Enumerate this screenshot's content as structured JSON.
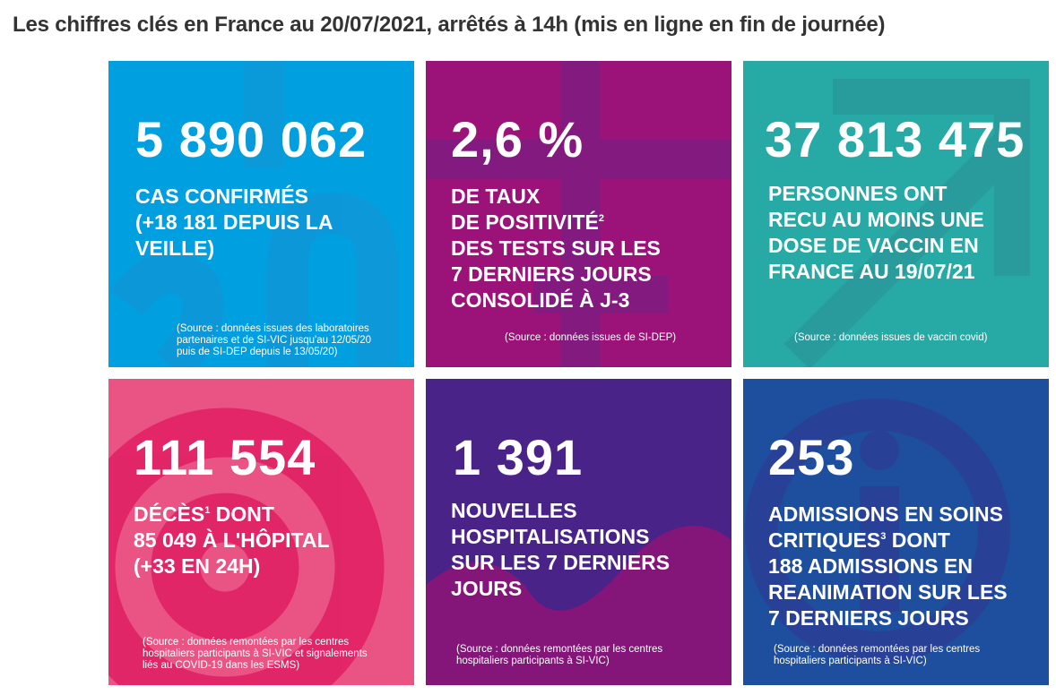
{
  "title": "Les chiffres clés en France au 20/07/2021, arrêtés à 14h (mis en ligne en fin de journée)",
  "colors": {
    "cases": "#009fdf",
    "positivity": "#9b1379",
    "vaccine": "#27a9a6",
    "deaths": "#ea5484",
    "hospitalisations": "#4a2389",
    "critical_care": "#1e4e9e"
  },
  "tiles": [
    {
      "value": "5 890 062",
      "lines": [
        "CAS CONFIRMÉS",
        "(+18 181 DEPUIS LA",
        "VEILLE)"
      ],
      "source": [
        "(Source : données issues des laboratoires",
        "partenaires et de SI-VIC jusqu'au 12/05/20",
        "puis de SI-DEP depuis le 13/05/20)"
      ]
    },
    {
      "value": "2,6 %",
      "lines": [
        "DE TAUX",
        "DE POSITIVITÉ",
        "DES TESTS SUR LES",
        "7 DERNIERS JOURS",
        "CONSOLIDÉ À J-3"
      ],
      "sup": "2",
      "source": [
        "(Source : données issues de SI-DEP)"
      ]
    },
    {
      "value": "37 813 475",
      "lines": [
        "PERSONNES ONT",
        "RECU AU MOINS UNE",
        "DOSE DE VACCIN EN",
        "FRANCE AU 19/07/21"
      ],
      "source": [
        "(Source : données issues de vaccin covid)"
      ]
    },
    {
      "value": "111 554",
      "lines": [
        "DÉCÈS",
        " DONT",
        "85 049 À L'HÔPITAL",
        "(+33 EN 24H)"
      ],
      "sup": "1",
      "source": [
        "(Source : données remontées par les centres",
        "hospitaliers participants à SI-VIC et signalements",
        "liés au COVID-19 dans les ESMS)"
      ]
    },
    {
      "value": "1 391",
      "lines": [
        "NOUVELLES",
        "HOSPITALISATIONS",
        "SUR LES 7 DERNIERS",
        "JOURS"
      ],
      "source": [
        "(Source : données remontées par les centres",
        "hospitaliers participants à SI-VIC)"
      ]
    },
    {
      "value": "253",
      "lines": [
        "ADMISSIONS EN SOINS",
        "CRITIQUES",
        " DONT",
        "188 ADMISSIONS EN",
        "REANIMATION SUR LES",
        "7 DERNIERS JOURS"
      ],
      "sup": "3",
      "source": [
        "(Source : données remontées par les centres",
        "hospitaliers participants à SI-VIC)"
      ]
    }
  ]
}
